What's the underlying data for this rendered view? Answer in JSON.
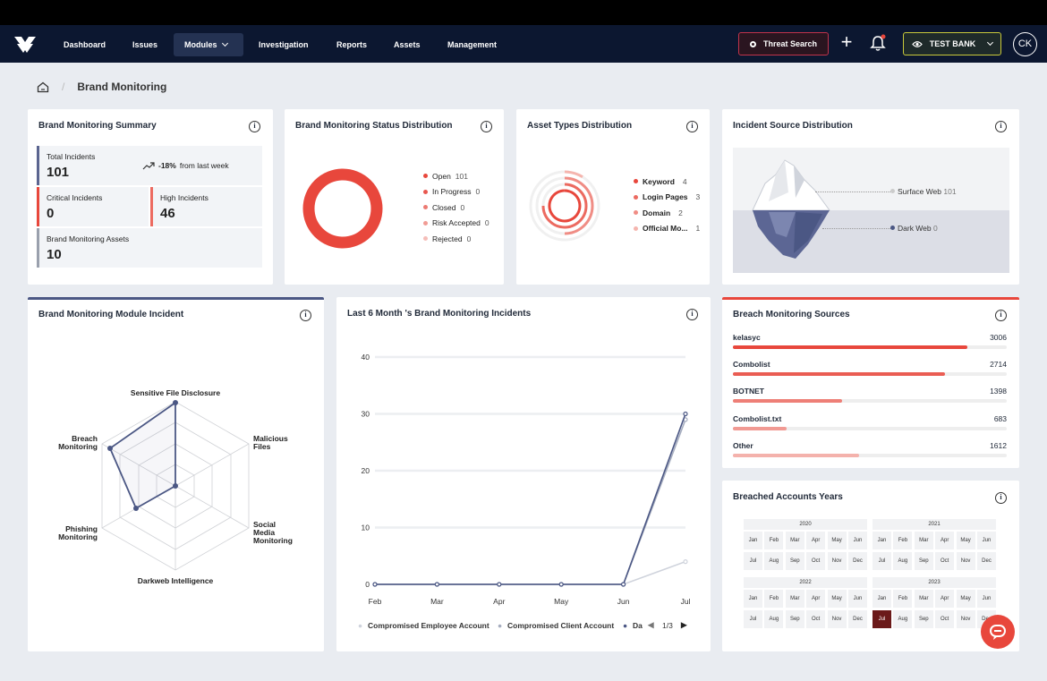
{
  "nav": {
    "items": [
      {
        "label": "Dashboard"
      },
      {
        "label": "Issues"
      },
      {
        "label": "Modules"
      },
      {
        "label": "Investigation"
      },
      {
        "label": "Reports"
      },
      {
        "label": "Assets"
      },
      {
        "label": "Management"
      }
    ],
    "threat_search": "Threat Search",
    "bank": "TEST BANK",
    "avatar": "CK"
  },
  "breadcrumb": {
    "title": "Brand Monitoring"
  },
  "summary": {
    "title": "Brand Monitoring Summary",
    "total_label": "Total Incidents",
    "total_value": "101",
    "trend_pct": "-18%",
    "trend_text": "from last week",
    "critical_label": "Critical Incidents",
    "critical_value": "0",
    "high_label": "High Incidents",
    "high_value": "46",
    "assets_label": "Brand Monitoring Assets",
    "assets_value": "10"
  },
  "status_dist": {
    "title": "Brand Monitoring Status Distribution",
    "items": [
      {
        "label": "Open",
        "value": "101",
        "color": "#e8473c"
      },
      {
        "label": "In Progress",
        "value": "0",
        "color": "#e8574f"
      },
      {
        "label": "Closed",
        "value": "0",
        "color": "#ec7a72"
      },
      {
        "label": "Risk Accepted",
        "value": "0",
        "color": "#f19c95"
      },
      {
        "label": "Rejected",
        "value": "0",
        "color": "#f5bdb8"
      }
    ]
  },
  "asset_dist": {
    "title": "Asset Types Distribution",
    "items": [
      {
        "label": "Keyword",
        "value": "4",
        "color": "#e8473c"
      },
      {
        "label": "Login Pages",
        "value": "3",
        "color": "#ec6a60"
      },
      {
        "label": "Domain",
        "value": "2",
        "color": "#f08d85"
      },
      {
        "label": "Official Mo...",
        "value": "1",
        "color": "#f5b5ae"
      }
    ]
  },
  "source_dist": {
    "title": "Incident Source Distribution",
    "surface_label": "Surface Web",
    "surface_value": "101",
    "dark_label": "Dark Web",
    "dark_value": "0"
  },
  "module_incident": {
    "title": "Brand Monitoring Module Incident",
    "axes": [
      "Sensitive File Disclosure",
      "Malicious Files",
      "Social Media Monitoring",
      "Darkweb Intelligence",
      "Phishing Monitoring",
      "Breach Monitoring"
    ],
    "axes_display": {
      "a0": "Sensitive File Disclosure",
      "a1_l1": "Malicious",
      "a1_l2": "Files",
      "a2_l1": "Social",
      "a2_l2": "Media",
      "a2_l3": "Monitoring",
      "a3": "Darkweb Intelligence",
      "a4_l1": "Phishing",
      "a4_l2": "Monitoring",
      "a5_l1": "Breach",
      "a5_l2": "Monitoring"
    }
  },
  "chart_data": {
    "type": "line",
    "title": "Last 6 Month 's Brand Monitoring Incidents",
    "x": [
      "Feb",
      "Mar",
      "Apr",
      "May",
      "Jun",
      "Jul"
    ],
    "ylim": [
      0,
      40
    ],
    "yticks": [
      0,
      10,
      20,
      30,
      40
    ],
    "grid": true,
    "legend_position": "bottom",
    "series": [
      {
        "name": "Compromised Employee Account",
        "values": [
          0,
          0,
          0,
          0,
          0,
          4
        ],
        "color": "#cfd3dc"
      },
      {
        "name": "Compromised Client Account",
        "values": [
          0,
          0,
          0,
          0,
          0,
          29
        ],
        "color": "#a6adbf"
      },
      {
        "name": "Da",
        "values": [
          0,
          0,
          0,
          0,
          0,
          30
        ],
        "color": "#4b5784"
      }
    ],
    "legend_page": "1/3"
  },
  "breach_sources": {
    "title": "Breach Monitoring Sources",
    "items": [
      {
        "label": "kelasyc",
        "value": "3006",
        "fraction": 0.855,
        "color": "#e8473c"
      },
      {
        "label": "Combolist",
        "value": "2714",
        "fraction": 0.775,
        "color": "#ea5d53"
      },
      {
        "label": "BOTNET",
        "value": "1398",
        "fraction": 0.4,
        "color": "#ee7f77"
      },
      {
        "label": "Combolist.txt",
        "value": "683",
        "fraction": 0.195,
        "color": "#f19a93"
      },
      {
        "label": "Other",
        "value": "1612",
        "fraction": 0.46,
        "color": "#f4b2ac"
      }
    ]
  },
  "breached_years": {
    "title": "Breached Accounts Years",
    "years": [
      "2020",
      "2021",
      "2022",
      "2023"
    ],
    "months": [
      "Jan",
      "Feb",
      "Mar",
      "Apr",
      "May",
      "Jun",
      "Jul",
      "Aug",
      "Sep",
      "Oct",
      "Nov",
      "Dec"
    ],
    "selected": {
      "year": "2023",
      "month": "Jul"
    }
  },
  "colors": {
    "accent": "#e8473c",
    "navy": "#0c1730",
    "radar": "#4b5784"
  }
}
